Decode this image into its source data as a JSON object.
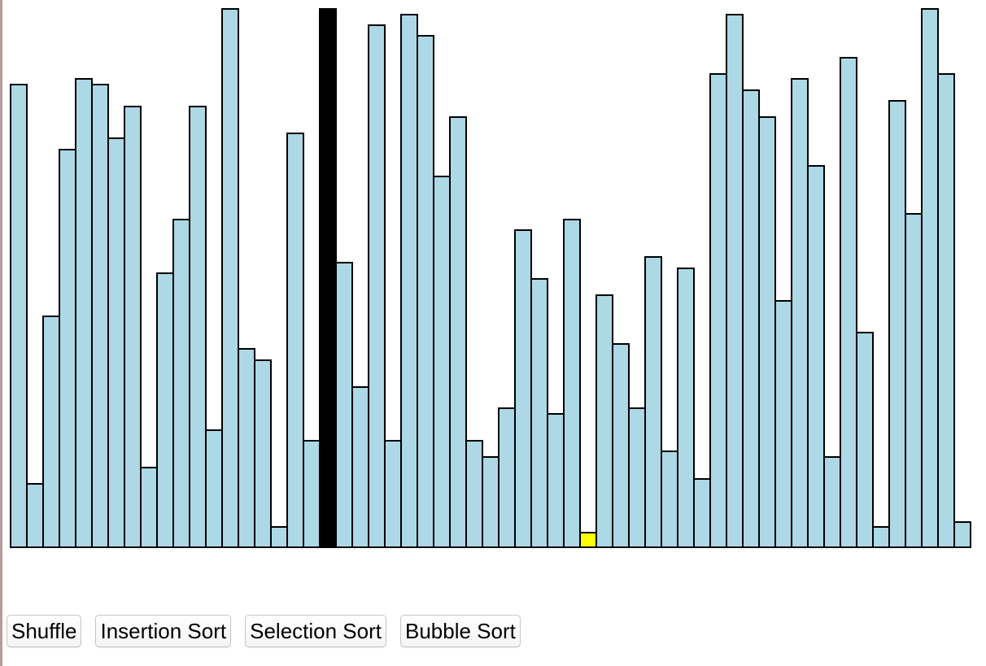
{
  "visualizer": {
    "default_color": "#add8e6",
    "active_color": "#000000",
    "compare_color": "#ffff00",
    "border_color": "#000000",
    "active_index": 19,
    "compare_index": 35,
    "max_value": 100,
    "values": [
      86,
      12,
      43,
      74,
      87,
      86,
      76,
      82,
      15,
      51,
      61,
      82,
      22,
      100,
      37,
      35,
      4,
      77,
      20,
      100,
      53,
      30,
      97,
      20,
      99,
      95,
      69,
      80,
      20,
      17,
      26,
      59,
      50,
      25,
      61,
      3,
      47,
      38,
      26,
      54,
      18,
      52,
      13,
      88,
      99,
      85,
      80,
      46,
      87,
      71,
      17,
      91,
      40,
      4,
      83,
      62,
      100,
      88,
      5
    ]
  },
  "controls": {
    "shuffle_label": "Shuffle",
    "insertion_label": "Insertion Sort",
    "selection_label": "Selection Sort",
    "bubble_label": "Bubble Sort"
  }
}
